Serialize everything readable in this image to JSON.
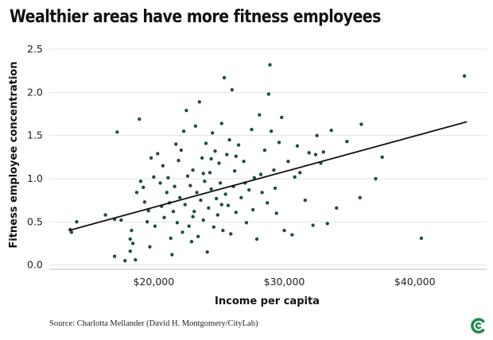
{
  "chart_data": {
    "type": "scatter",
    "title": "Wealthier areas have more fitness employees",
    "xlabel": "Income per capita",
    "ylabel": "Fitness employee concentration",
    "xlim": [
      12000,
      45500
    ],
    "ylim": [
      -0.05,
      2.5
    ],
    "x_ticks": [
      20000,
      30000,
      40000
    ],
    "x_tick_labels": [
      "$20,000",
      "$30,000",
      "$40,000"
    ],
    "y_ticks": [
      0.0,
      0.5,
      1.0,
      1.5,
      2.0,
      2.5
    ],
    "y_tick_labels": [
      "0.0",
      "0.5",
      "1.0",
      "1.5",
      "2.0",
      "2.5"
    ],
    "grid": "horizontal",
    "point_color": "#1f5135",
    "trendline": {
      "x": [
        13500,
        44000
      ],
      "y": [
        0.4,
        1.66
      ],
      "color": "#111111"
    },
    "points": [
      [
        13700,
        0.38
      ],
      [
        13600,
        0.41
      ],
      [
        14100,
        0.5
      ],
      [
        16300,
        0.58
      ],
      [
        17000,
        0.53
      ],
      [
        17500,
        0.52
      ],
      [
        17200,
        1.54
      ],
      [
        17000,
        0.1
      ],
      [
        17800,
        0.05
      ],
      [
        18200,
        0.16
      ],
      [
        18600,
        0.06
      ],
      [
        18400,
        0.25
      ],
      [
        18700,
        0.84
      ],
      [
        19000,
        0.97
      ],
      [
        18300,
        0.4
      ],
      [
        18900,
        1.69
      ],
      [
        18200,
        0.3
      ],
      [
        19300,
        0.73
      ],
      [
        19600,
        0.63
      ],
      [
        19500,
        0.5
      ],
      [
        19800,
        1.24
      ],
      [
        19700,
        0.21
      ],
      [
        20000,
        1.02
      ],
      [
        20100,
        0.45
      ],
      [
        20300,
        1.29
      ],
      [
        20500,
        0.95
      ],
      [
        20600,
        0.68
      ],
      [
        20800,
        0.55
      ],
      [
        21000,
        0.84
      ],
      [
        21100,
        1.01
      ],
      [
        21300,
        0.31
      ],
      [
        21400,
        0.12
      ],
      [
        21500,
        0.62
      ],
      [
        21600,
        0.91
      ],
      [
        21700,
        1.4
      ],
      [
        21800,
        0.49
      ],
      [
        21900,
        1.21
      ],
      [
        22000,
        0.78
      ],
      [
        22200,
        0.38
      ],
      [
        22300,
        1.55
      ],
      [
        22400,
        0.7
      ],
      [
        22500,
        1.79
      ],
      [
        22600,
        1.03
      ],
      [
        22700,
        0.45
      ],
      [
        22800,
        0.92
      ],
      [
        22900,
        0.27
      ],
      [
        23000,
        1.1
      ],
      [
        23100,
        0.62
      ],
      [
        23200,
        1.61
      ],
      [
        23300,
        0.84
      ],
      [
        23400,
        0.33
      ],
      [
        23500,
        1.89
      ],
      [
        23600,
        0.75
      ],
      [
        23700,
        1.24
      ],
      [
        23800,
        0.52
      ],
      [
        23900,
        0.97
      ],
      [
        24000,
        1.41
      ],
      [
        24100,
        0.15
      ],
      [
        24200,
        0.66
      ],
      [
        24300,
        1.07
      ],
      [
        24400,
        0.88
      ],
      [
        24500,
        1.53
      ],
      [
        24600,
        0.44
      ],
      [
        24700,
        1.32
      ],
      [
        24800,
        0.77
      ],
      [
        24900,
        0.58
      ],
      [
        25000,
        1.18
      ],
      [
        25100,
        0.95
      ],
      [
        25200,
        1.64
      ],
      [
        25300,
        0.4
      ],
      [
        25400,
        2.17
      ],
      [
        25500,
        0.82
      ],
      [
        25600,
        1.28
      ],
      [
        25700,
        0.69
      ],
      [
        25800,
        1.45
      ],
      [
        25900,
        0.36
      ],
      [
        26000,
        2.03
      ],
      [
        26100,
        0.91
      ],
      [
        26200,
        1.09
      ],
      [
        26300,
        0.61
      ],
      [
        26500,
        1.39
      ],
      [
        26700,
        0.78
      ],
      [
        26900,
        1.2
      ],
      [
        27100,
        0.49
      ],
      [
        27300,
        0.87
      ],
      [
        27500,
        1.57
      ],
      [
        27700,
        1.01
      ],
      [
        27900,
        0.3
      ],
      [
        28100,
        1.74
      ],
      [
        28300,
        0.84
      ],
      [
        28500,
        1.33
      ],
      [
        28700,
        0.72
      ],
      [
        28800,
        1.98
      ],
      [
        28900,
        2.32
      ],
      [
        29000,
        1.55
      ],
      [
        29200,
        1.1
      ],
      [
        29400,
        0.6
      ],
      [
        29600,
        1.42
      ],
      [
        29800,
        1.71
      ],
      [
        30000,
        0.4
      ],
      [
        30300,
        1.2
      ],
      [
        30600,
        0.35
      ],
      [
        31000,
        1.38
      ],
      [
        31200,
        1.07
      ],
      [
        31600,
        0.75
      ],
      [
        31900,
        1.3
      ],
      [
        32200,
        0.46
      ],
      [
        32500,
        1.5
      ],
      [
        32800,
        1.18
      ],
      [
        33000,
        1.31
      ],
      [
        33300,
        0.48
      ],
      [
        33600,
        1.56
      ],
      [
        34000,
        0.66
      ],
      [
        34800,
        1.43
      ],
      [
        35800,
        0.78
      ],
      [
        35900,
        1.63
      ],
      [
        37000,
        1.0
      ],
      [
        37500,
        1.25
      ],
      [
        40500,
        0.31
      ],
      [
        43800,
        2.19
      ],
      [
        19200,
        0.9
      ],
      [
        20700,
        1.15
      ],
      [
        21200,
        0.72
      ],
      [
        22100,
        1.33
      ],
      [
        23000,
        0.56
      ],
      [
        23800,
        1.06
      ],
      [
        24400,
        1.23
      ],
      [
        25200,
        0.7
      ],
      [
        26300,
        1.26
      ],
      [
        27000,
        0.95
      ],
      [
        27600,
        0.64
      ],
      [
        28200,
        1.05
      ],
      [
        29300,
        0.89
      ],
      [
        30800,
        1.02
      ],
      [
        32400,
        1.28
      ]
    ]
  }
}
